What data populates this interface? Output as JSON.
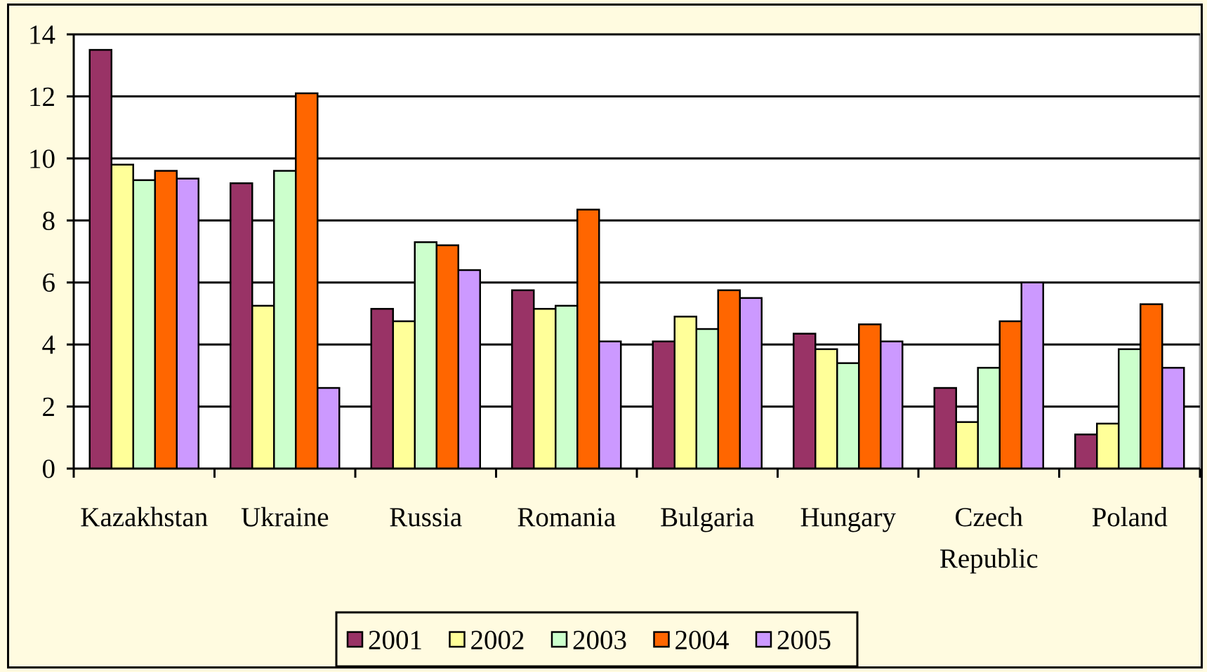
{
  "chart_data": {
    "type": "bar",
    "categories": [
      [
        "Kazakhstan"
      ],
      [
        "Ukraine"
      ],
      [
        "Russia"
      ],
      [
        "Romania"
      ],
      [
        "Bulgaria"
      ],
      [
        "Hungary"
      ],
      [
        "Czech",
        "Republic"
      ],
      [
        "Poland"
      ]
    ],
    "series": [
      {
        "name": "2001",
        "color": "#993366",
        "values": [
          13.5,
          9.2,
          5.15,
          5.75,
          4.1,
          4.35,
          2.6,
          1.1
        ]
      },
      {
        "name": "2002",
        "color": "#ffff99",
        "values": [
          9.8,
          5.25,
          4.75,
          5.15,
          4.9,
          3.85,
          1.5,
          1.45
        ]
      },
      {
        "name": "2003",
        "color": "#ccffcc",
        "values": [
          9.3,
          9.6,
          7.3,
          5.25,
          4.5,
          3.4,
          3.25,
          3.85
        ]
      },
      {
        "name": "2004",
        "color": "#ff6600",
        "values": [
          9.6,
          12.1,
          7.2,
          8.35,
          5.75,
          4.65,
          4.75,
          5.3
        ]
      },
      {
        "name": "2005",
        "color": "#cc99ff",
        "values": [
          9.35,
          2.6,
          6.4,
          4.1,
          5.5,
          4.1,
          6.0,
          3.25
        ]
      }
    ],
    "yticks": [
      "0",
      "2",
      "4",
      "6",
      "8",
      "10",
      "12",
      "14"
    ],
    "ylim": [
      0,
      14
    ],
    "grid": true,
    "legend": "bottom-center",
    "title": "",
    "xlabel": "",
    "ylabel": ""
  }
}
